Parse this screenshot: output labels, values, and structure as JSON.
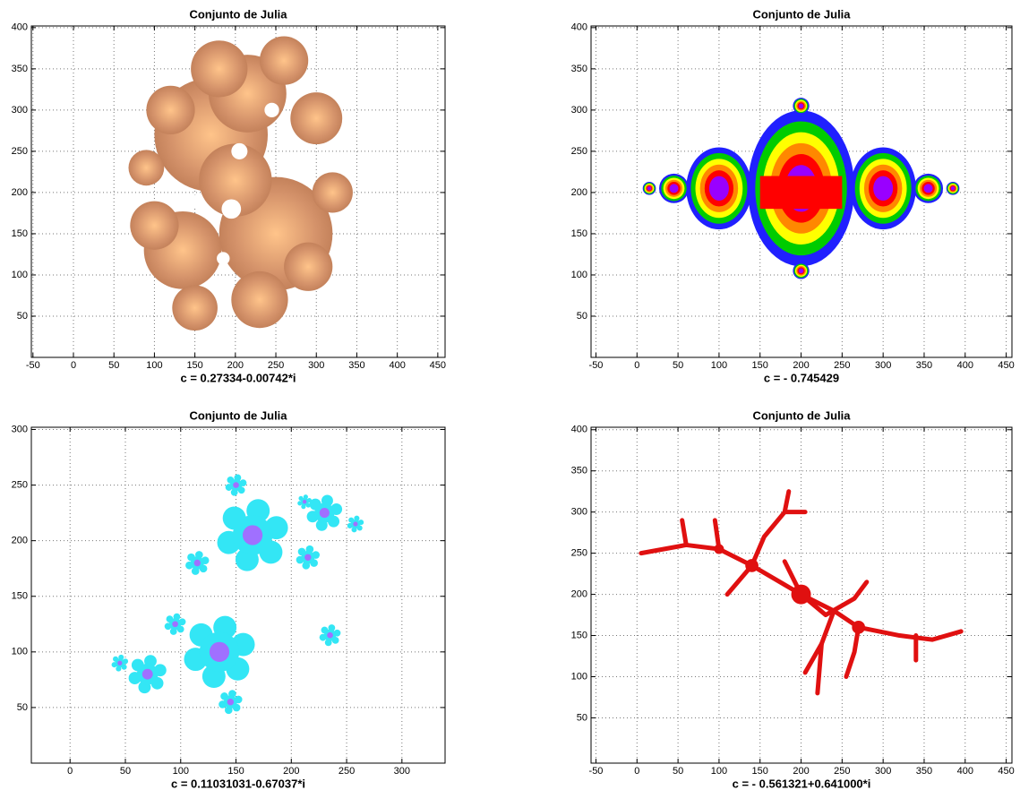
{
  "chart_data": [
    {
      "type": "image",
      "title": "Conjunto de Julia",
      "xlabel": "c = 0.27334-0.00742*i",
      "xlim": [
        -52,
        459
      ],
      "ylim": [
        0,
        402
      ],
      "xticks": [
        -50,
        0,
        50,
        100,
        150,
        200,
        250,
        300,
        350,
        400,
        450
      ],
      "yticks": [
        50,
        100,
        150,
        200,
        250,
        300,
        350,
        400
      ],
      "grid": true
    },
    {
      "type": "image",
      "title": "Conjunto de Julia",
      "xlabel": "c = - 0.745429",
      "xlim": [
        -56,
        457
      ],
      "ylim": [
        0,
        402
      ],
      "xticks": [
        -50,
        0,
        50,
        100,
        150,
        200,
        250,
        300,
        350,
        400,
        450
      ],
      "yticks": [
        50,
        100,
        150,
        200,
        250,
        300,
        350,
        400
      ],
      "grid": true
    },
    {
      "type": "image",
      "title": "Conjunto de Julia",
      "xlabel": "c = 0.11031031-0.67037*i",
      "xlim": [
        -35,
        339
      ],
      "ylim": [
        0,
        302
      ],
      "xticks": [
        0,
        50,
        100,
        150,
        200,
        250,
        300
      ],
      "yticks": [
        50,
        100,
        150,
        200,
        250,
        300
      ],
      "grid": true
    },
    {
      "type": "image",
      "title": "Conjunto de Julia",
      "xlabel": "c = - 0.561321+0.641000*i",
      "xlim": [
        -56,
        457
      ],
      "ylim": [
        -5,
        403
      ],
      "xticks": [
        -50,
        0,
        50,
        100,
        150,
        200,
        250,
        300,
        350,
        400,
        450
      ],
      "yticks": [
        50,
        100,
        150,
        200,
        250,
        300,
        350,
        400
      ],
      "grid": true
    }
  ]
}
